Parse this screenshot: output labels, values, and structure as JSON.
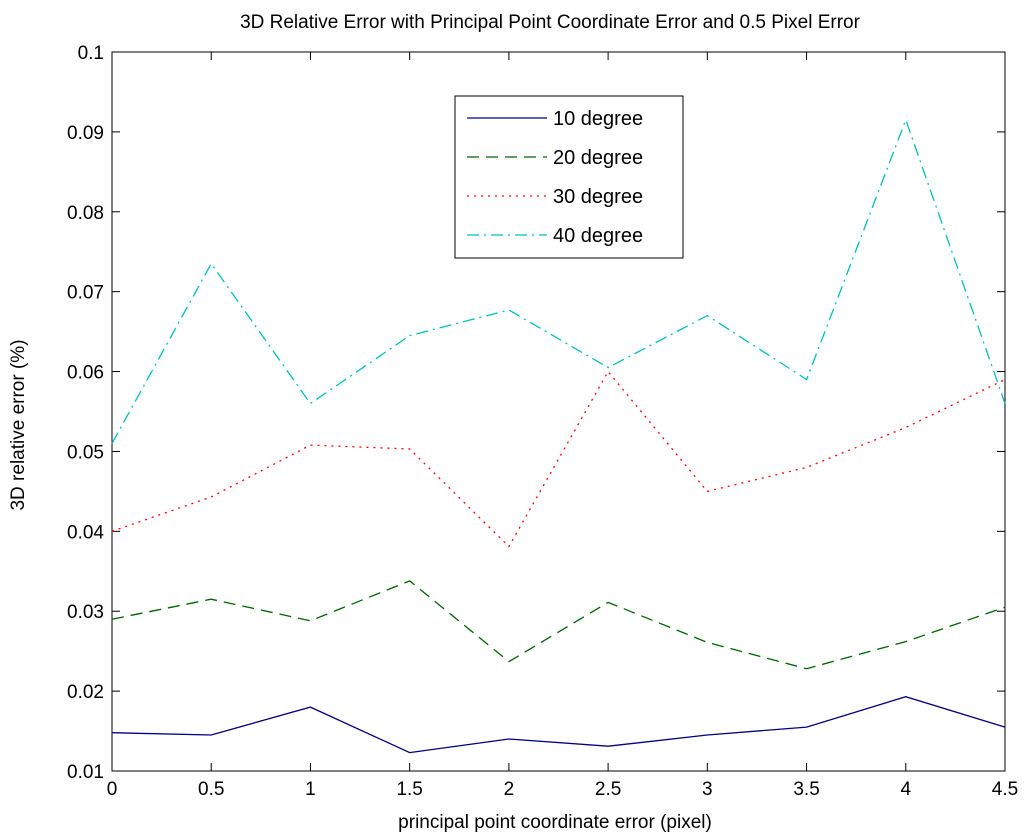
{
  "chart_data": {
    "type": "line",
    "title": "3D Relative Error with Principal Point Coordinate Error and 0.5 Pixel Error",
    "xlabel": "principal point coordinate error (pixel)",
    "ylabel": "3D relative error (%)",
    "xlim": [
      0,
      4.5
    ],
    "ylim": [
      0.01,
      0.1
    ],
    "x": [
      0,
      0.5,
      1,
      1.5,
      2,
      2.5,
      3,
      3.5,
      4,
      4.5
    ],
    "x_ticks": [
      "0",
      "0.5",
      "1",
      "1.5",
      "2",
      "2.5",
      "3",
      "3.5",
      "4",
      "4.5"
    ],
    "y_ticks": [
      "0.01",
      "0.02",
      "0.03",
      "0.04",
      "0.05",
      "0.06",
      "0.07",
      "0.08",
      "0.09",
      "0.1"
    ],
    "y_tick_values": [
      0.01,
      0.02,
      0.03,
      0.04,
      0.05,
      0.06,
      0.07,
      0.08,
      0.09,
      0.1
    ],
    "grid": false,
    "legend_position": "top-center",
    "series": [
      {
        "name": "10 degree",
        "color": "#000080",
        "dash": "solid",
        "values": [
          0.0148,
          0.0145,
          0.018,
          0.0123,
          0.014,
          0.0131,
          0.0145,
          0.0155,
          0.0193,
          0.0155
        ]
      },
      {
        "name": "20 degree",
        "color": "#006400",
        "dash": "dashed",
        "values": [
          0.029,
          0.0315,
          0.0288,
          0.0338,
          0.0237,
          0.0311,
          0.0261,
          0.0228,
          0.0262,
          0.0305
        ]
      },
      {
        "name": "30 degree",
        "color": "#ff0000",
        "dash": "dotted",
        "values": [
          0.04,
          0.0443,
          0.0508,
          0.0503,
          0.0381,
          0.06,
          0.045,
          0.048,
          0.053,
          0.059
        ]
      },
      {
        "name": "40 degree",
        "color": "#00bfbf",
        "dash": "dashdot",
        "values": [
          0.051,
          0.0735,
          0.056,
          0.0645,
          0.0677,
          0.0605,
          0.067,
          0.059,
          0.0915,
          0.056
        ]
      }
    ]
  }
}
